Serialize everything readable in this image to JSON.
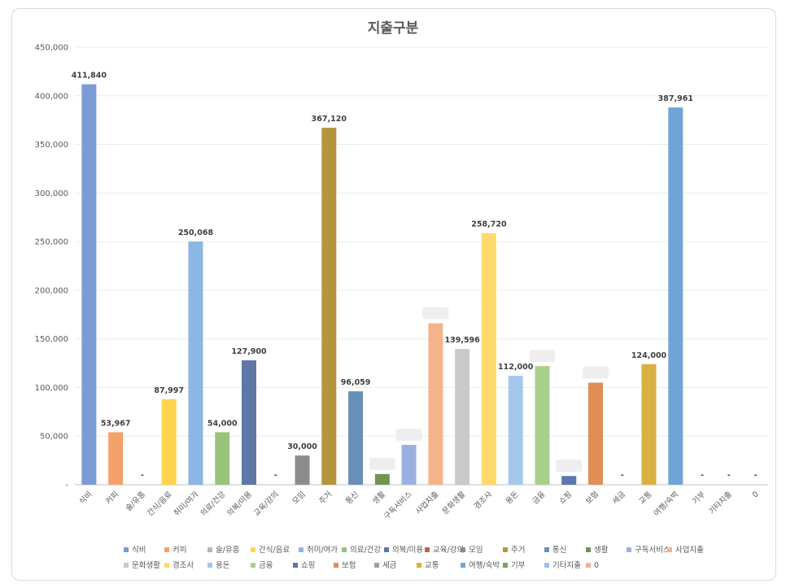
{
  "chart_data": {
    "type": "bar",
    "title": "지출구분",
    "xlabel": "",
    "ylabel": "",
    "ylim": [
      0,
      450000
    ],
    "yticks": [
      "-",
      "50,000",
      "100,000",
      "150,000",
      "200,000",
      "250,000",
      "300,000",
      "350,000",
      "400,000",
      "450,000"
    ],
    "grid": true,
    "legend": "bottom",
    "categories": [
      "식비",
      "커피",
      "술/유흥",
      "간식/음료",
      "취미/여가",
      "의료/건강",
      "의복/미용",
      "교육/강의",
      "모임",
      "주거",
      "통신",
      "생활",
      "구독서비스",
      "사업지출",
      "문화생활",
      "경조사",
      "용돈",
      "금융",
      "쇼핑",
      "보험",
      "세금",
      "교통",
      "여행/숙박",
      "기부",
      "기타지출",
      "0"
    ],
    "values": [
      411840,
      53967,
      0,
      87997,
      250068,
      54000,
      127900,
      0,
      30000,
      367120,
      96059,
      11000,
      41000,
      166000,
      139596,
      258720,
      112000,
      122000,
      9000,
      105000,
      0,
      124000,
      387961,
      0,
      0,
      0
    ],
    "data_labels": [
      "411,840",
      "53,967",
      "-",
      "87,997",
      "250,068",
      "54,000",
      "127,900",
      "-",
      "30,000",
      "367,120",
      "96,059",
      "",
      "",
      "",
      "139,596",
      "258,720",
      "112,000",
      "",
      "",
      "",
      "-",
      "124,000",
      "387,961",
      "-",
      "-",
      "-"
    ],
    "colors": [
      "#7b9bd6",
      "#f4a06a",
      "#b5b5b5",
      "#ffd44f",
      "#8cb6e3",
      "#97c47a",
      "#5f77a6",
      "#b8693f",
      "#8c8c8c",
      "#b5953c",
      "#6690b8",
      "#6f9455",
      "#9ab1e0",
      "#f4b48a",
      "#c9c9c9",
      "#ffd96b",
      "#a5c7ec",
      "#a8d08d",
      "#5a78b0",
      "#e08e55",
      "#a0a0a0",
      "#d8b143",
      "#6fa5d6",
      "#7aa355",
      "#9dbbe8",
      "#f2b193"
    ]
  }
}
